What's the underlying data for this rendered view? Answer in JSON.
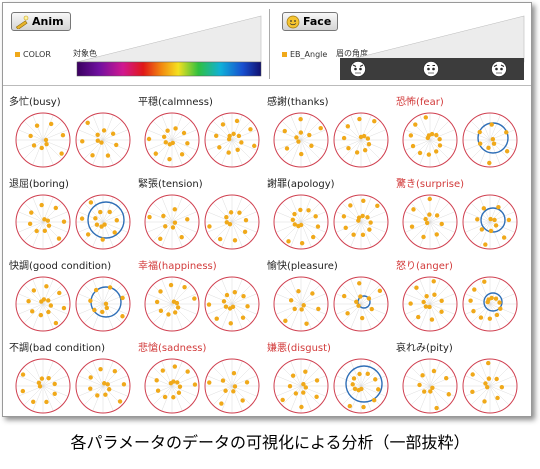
{
  "header": {
    "anim": {
      "button_label": "Anim",
      "param_label": "COLOR",
      "scale_label": "対象色"
    },
    "face": {
      "button_label": "Face",
      "param_label": "EB_Angle",
      "scale_label": "眉の角度"
    }
  },
  "colors": {
    "accent": "#f0a91a",
    "red_ring": "#d04050",
    "blue_ring": "#2f6fb7",
    "highlight_title": "#d23a3a"
  },
  "cells": [
    {
      "label": "多忙(busy)",
      "highlight": false,
      "blue": false
    },
    {
      "label": "平穏(calmness)",
      "highlight": false,
      "blue": false
    },
    {
      "label": "感謝(thanks)",
      "highlight": false,
      "blue": false
    },
    {
      "label": "恐怖(fear)",
      "highlight": true,
      "blue": true
    },
    {
      "label": "退屈(boring)",
      "highlight": false,
      "blue": true
    },
    {
      "label": "緊張(tension)",
      "highlight": false,
      "blue": false
    },
    {
      "label": "謝罪(apology)",
      "highlight": false,
      "blue": false
    },
    {
      "label": "驚き(surprise)",
      "highlight": true,
      "blue": true
    },
    {
      "label": "快調(good condition)",
      "highlight": false,
      "blue": true
    },
    {
      "label": "幸福(happiness)",
      "highlight": true,
      "blue": false
    },
    {
      "label": "愉快(pleasure)",
      "highlight": false,
      "blue": true
    },
    {
      "label": "怒り(anger)",
      "highlight": true,
      "blue": true
    },
    {
      "label": "不調(bad condition)",
      "highlight": false,
      "blue": false
    },
    {
      "label": "悲愴(sadness)",
      "highlight": true,
      "blue": false
    },
    {
      "label": "嫌悪(disgust)",
      "highlight": true,
      "blue": true
    },
    {
      "label": "哀れみ(pity)",
      "highlight": false,
      "blue": false
    }
  ],
  "caption": "各パラメータのデータの可視化による分析（一部抜粋）"
}
